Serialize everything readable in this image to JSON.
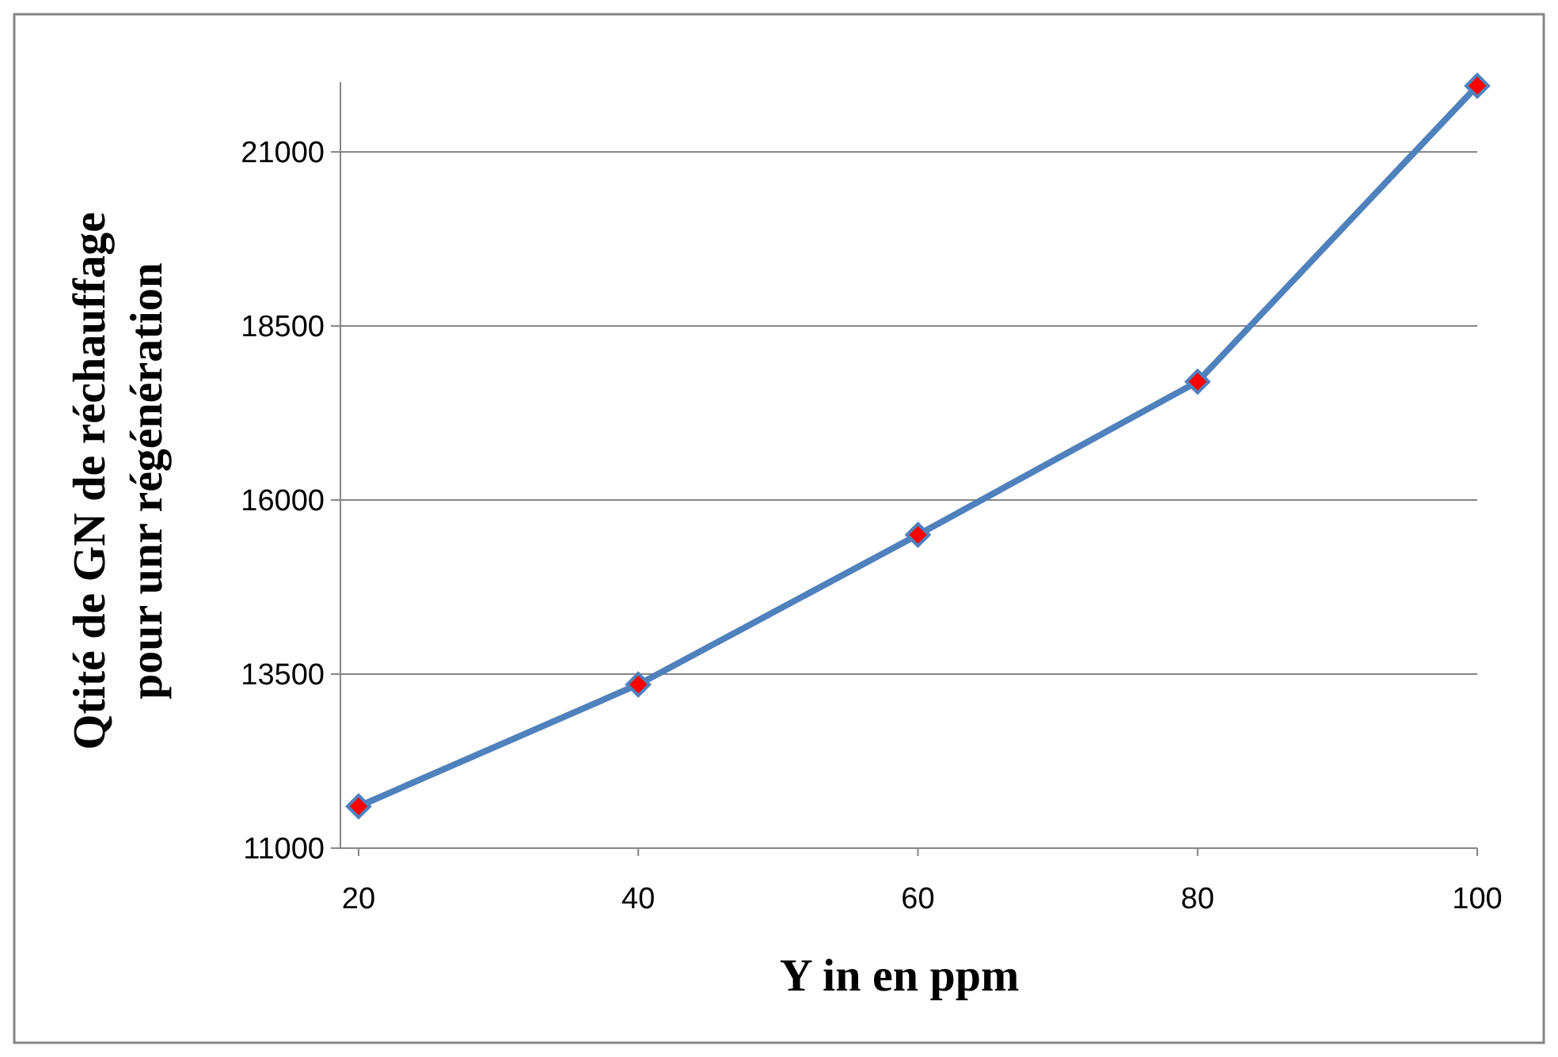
{
  "chart_data": {
    "type": "line",
    "xlabel": "Y in en ppm",
    "ylabel": "Qtité de GN de réchauffage pour unr régénération",
    "x": [
      20,
      40,
      60,
      80,
      100
    ],
    "series": [
      {
        "color": "#4f81bd",
        "marker": "none",
        "values": [
          11600,
          13350,
          15500,
          17700,
          21950
        ]
      },
      {
        "type": "scatter",
        "color": "#ff0000",
        "values": [
          11600,
          13350,
          15500,
          17700,
          21950
        ]
      }
    ],
    "xlim": [
      18.7,
      100
    ],
    "xticks": [
      20,
      40,
      60,
      80,
      100
    ],
    "ylim": [
      11000,
      22000
    ],
    "yticks": [
      11000,
      13500,
      16000,
      18500,
      21000
    ],
    "grid": "y",
    "marker": "diamond",
    "line_style": "solid"
  }
}
